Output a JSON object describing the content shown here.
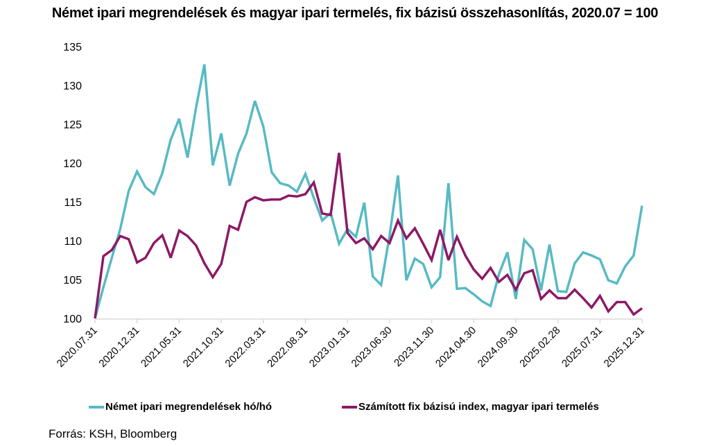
{
  "chart_data": {
    "type": "line",
    "title": "Német ipari megrendelések és magyar ipari termelés, fix bázisú összehasonlítás, 2020.07 = 100",
    "xlabel": "",
    "ylabel": "",
    "ylim": [
      100,
      135
    ],
    "yticks": [
      "100",
      "105",
      "110",
      "115",
      "120",
      "125",
      "130",
      "135"
    ],
    "ytick_values": [
      100,
      105,
      110,
      115,
      120,
      125,
      130,
      135
    ],
    "xtick_labels": [
      "2020.07.31",
      "2020.12.31",
      "2021.05.31",
      "2021.10.31",
      "2022.03.31",
      "2022.08.31",
      "2023.01.31",
      "2023.06.30",
      "2023.11.30",
      "2024.04.30",
      "2024.09.30",
      "2025.02.28",
      "2025.07.31",
      "2025.12.31"
    ],
    "xtick_every": 5,
    "n_points": 66,
    "grid": false,
    "legend_position": "bottom",
    "series": [
      {
        "name": "Német ipari megrendelések hó/hó",
        "color": "#57BAC4",
        "values": [
          100,
          104,
          107.8,
          111.5,
          116.4,
          118.9,
          116.9,
          116,
          118.7,
          123,
          125.7,
          120.7,
          127.1,
          132.7,
          119.7,
          123.8,
          117.1,
          121.2,
          123.8,
          128,
          124.7,
          118.8,
          117.4,
          117.1,
          116.3,
          118.6,
          115.5,
          112.6,
          113.6,
          109.6,
          111.5,
          110.5,
          114.9,
          105.4,
          104.3,
          110.6,
          118.4,
          104.9,
          107.7,
          107,
          104,
          105.3,
          117.4,
          103.8,
          103.9,
          103.1,
          102.2,
          101.6,
          105.7,
          108.5,
          102.5,
          110.1,
          108.9,
          103.6,
          109.5,
          103.5,
          103.4,
          107.1,
          108.5,
          108.1,
          107.6,
          104.9,
          104.5,
          106.7,
          108.1,
          114.5
        ]
      },
      {
        "name": "Számított fix bázisú index, magyar ipari termelés",
        "color": "#8B1A66",
        "values": [
          100,
          108,
          108.8,
          110.6,
          110.2,
          107.2,
          107.8,
          109.7,
          110.7,
          107.8,
          111.3,
          110.6,
          109.4,
          107.1,
          105.3,
          107,
          111.9,
          111.4,
          115,
          115.6,
          115.2,
          115.3,
          115.3,
          115.8,
          115.7,
          116,
          117.5,
          113.5,
          113.3,
          121.3,
          111,
          109.7,
          110.3,
          108.9,
          110.6,
          109.7,
          112.6,
          110.3,
          111.6,
          109.6,
          107.5,
          111.4,
          107.5,
          110.5,
          108.1,
          106.3,
          105.1,
          106.5,
          104.7,
          105.6,
          103.7,
          105.8,
          106.2,
          102.5,
          103.6,
          102.6,
          102.6,
          103.7,
          102.6,
          101.4,
          102.9,
          100.9,
          102.1,
          102.1,
          100.5,
          101.3
        ]
      }
    ]
  },
  "source": "Forrás: KSH, Bloomberg"
}
